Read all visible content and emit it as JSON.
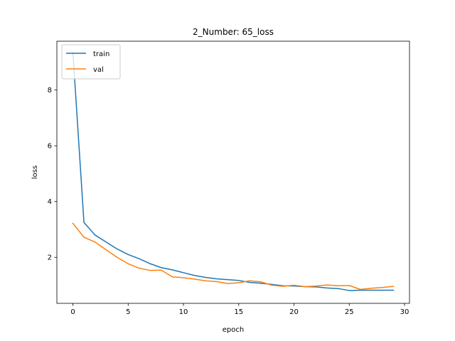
{
  "chart_data": {
    "type": "line",
    "title": "2_Number: 65_loss",
    "xlabel": "epoch",
    "ylabel": "loss",
    "xlim": [
      -1.45,
      30.45
    ],
    "ylim": [
      0.35,
      9.75
    ],
    "xticks": [
      0,
      5,
      10,
      15,
      20,
      25,
      30
    ],
    "yticks": [
      2,
      4,
      6,
      8
    ],
    "grid": false,
    "legend_position": "top-left",
    "series": [
      {
        "name": "train",
        "color": "#1f77b4",
        "x": [
          0,
          1,
          2,
          3,
          4,
          5,
          6,
          7,
          8,
          9,
          10,
          11,
          12,
          13,
          14,
          15,
          16,
          17,
          18,
          19,
          20,
          21,
          22,
          23,
          24,
          25,
          26,
          27,
          28,
          29
        ],
        "y": [
          9.35,
          3.25,
          2.8,
          2.55,
          2.3,
          2.1,
          1.95,
          1.77,
          1.63,
          1.55,
          1.45,
          1.35,
          1.28,
          1.23,
          1.2,
          1.17,
          1.1,
          1.07,
          1.03,
          0.98,
          0.97,
          0.95,
          0.94,
          0.9,
          0.88,
          0.81,
          0.82,
          0.82,
          0.82,
          0.82
        ]
      },
      {
        "name": "val",
        "color": "#ff7f0e",
        "x": [
          0,
          1,
          2,
          3,
          4,
          5,
          6,
          7,
          8,
          9,
          10,
          11,
          12,
          13,
          14,
          15,
          16,
          17,
          18,
          19,
          20,
          21,
          22,
          23,
          24,
          25,
          26,
          27,
          28,
          29
        ],
        "y": [
          3.22,
          2.72,
          2.55,
          2.27,
          2.0,
          1.77,
          1.61,
          1.53,
          1.54,
          1.3,
          1.27,
          1.22,
          1.16,
          1.13,
          1.06,
          1.09,
          1.16,
          1.12,
          1.0,
          0.96,
          1.0,
          0.95,
          0.97,
          1.01,
          0.98,
          0.99,
          0.85,
          0.89,
          0.92,
          0.96
        ]
      }
    ]
  }
}
